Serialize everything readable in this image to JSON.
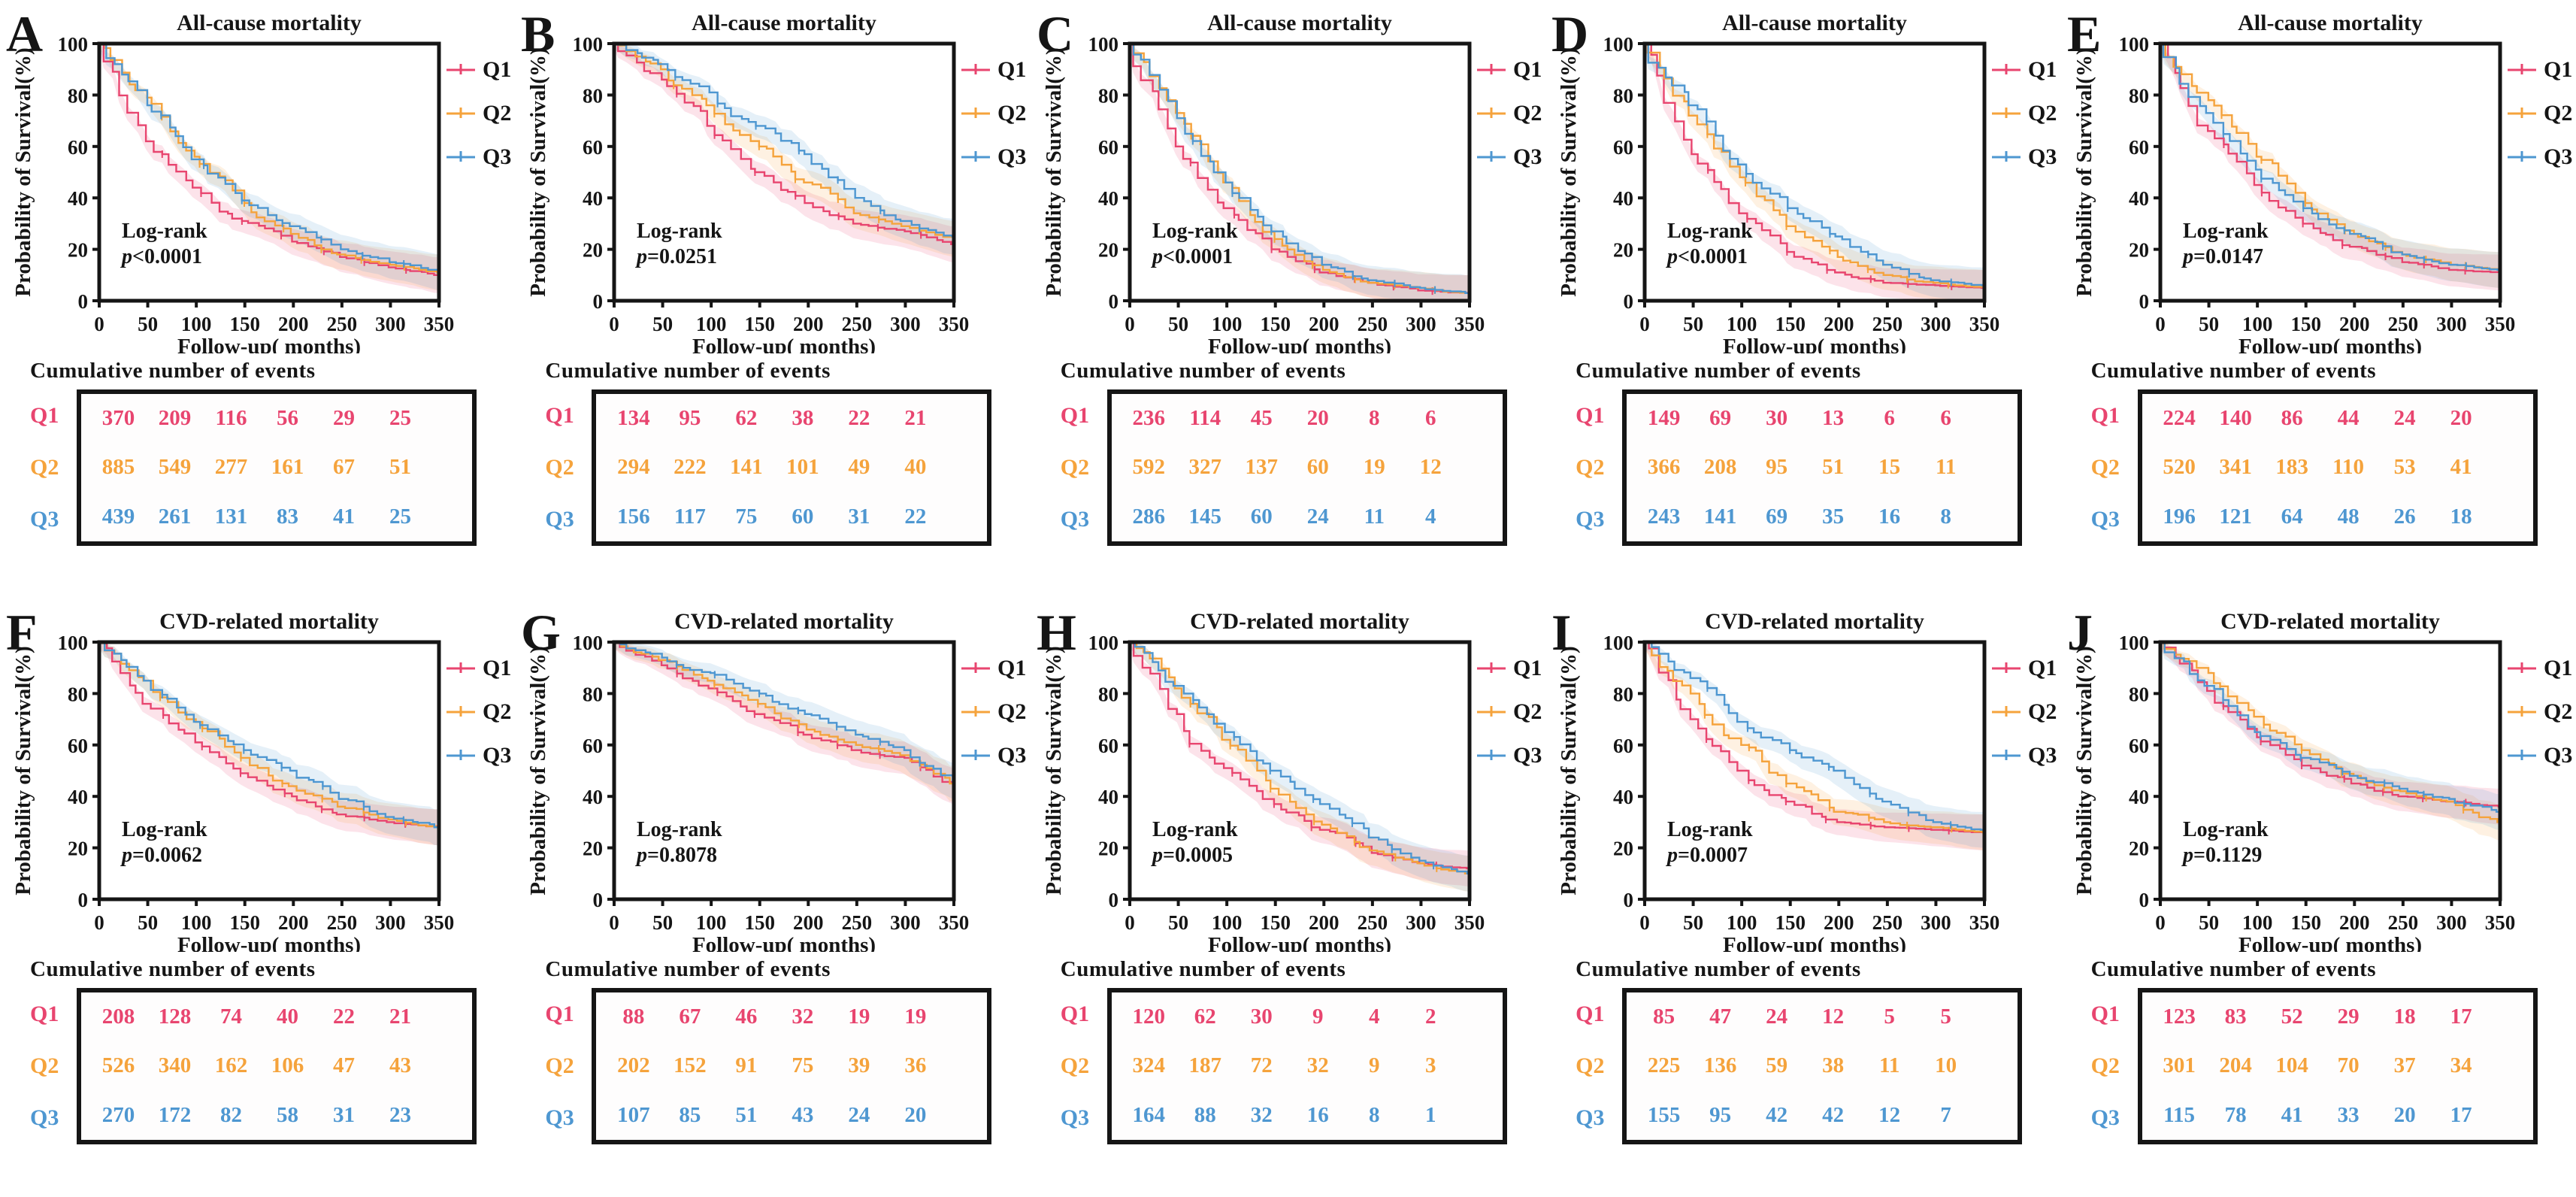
{
  "figure": {
    "axes": {
      "xlabel": "Follow-up( months)",
      "ylabel": "Probability of Survival(%)",
      "x_ticks": [
        0,
        50,
        100,
        150,
        200,
        250,
        300,
        350
      ],
      "y_ticks": [
        0,
        20,
        40,
        60,
        80,
        100
      ],
      "xlim": [
        0,
        350
      ],
      "ylim": [
        0,
        100
      ],
      "grid": false
    },
    "log_rank_label": "Log-rank",
    "events_heading": "Cumulative number of events",
    "legend": [
      {
        "label": "Q1",
        "color": "#E8456F"
      },
      {
        "label": "Q2",
        "color": "#F5A33C"
      },
      {
        "label": "Q3",
        "color": "#4E97D1"
      }
    ],
    "legend_position": "right",
    "frame_color": "#151515"
  },
  "chart_data": [
    {
      "panel": "A",
      "type": "line",
      "title": "All-cause mortality",
      "log_rank_p": "p<0.0001",
      "x": [
        0,
        50,
        100,
        150,
        200,
        250,
        300,
        350
      ],
      "series": [
        {
          "name": "Q1",
          "values": [
            100,
            62,
            44,
            31,
            23,
            17,
            13,
            10
          ]
        },
        {
          "name": "Q2",
          "values": [
            100,
            79,
            56,
            38,
            26,
            18,
            14,
            11
          ]
        },
        {
          "name": "Q3",
          "values": [
            100,
            76,
            55,
            39,
            29,
            20,
            15,
            11
          ]
        }
      ],
      "cumulative_events": [
        {
          "name": "Q1",
          "values": [
            370,
            209,
            116,
            56,
            29,
            25
          ]
        },
        {
          "name": "Q2",
          "values": [
            885,
            549,
            277,
            161,
            67,
            51
          ]
        },
        {
          "name": "Q3",
          "values": [
            439,
            261,
            131,
            83,
            41,
            25
          ]
        }
      ]
    },
    {
      "panel": "B",
      "type": "line",
      "title": "All-cause mortality",
      "log_rank_p": "p=0.0251",
      "x": [
        0,
        50,
        100,
        150,
        200,
        250,
        300,
        350
      ],
      "series": [
        {
          "name": "Q1",
          "values": [
            100,
            86,
            68,
            50,
            38,
            30,
            27,
            22
          ]
        },
        {
          "name": "Q2",
          "values": [
            100,
            90,
            76,
            60,
            46,
            34,
            29,
            24
          ]
        },
        {
          "name": "Q3",
          "values": [
            100,
            92,
            81,
            68,
            57,
            40,
            31,
            25
          ]
        }
      ],
      "cumulative_events": [
        {
          "name": "Q1",
          "values": [
            134,
            95,
            62,
            38,
            22,
            21
          ]
        },
        {
          "name": "Q2",
          "values": [
            294,
            222,
            141,
            101,
            49,
            40
          ]
        },
        {
          "name": "Q3",
          "values": [
            156,
            117,
            75,
            60,
            31,
            22
          ]
        }
      ]
    },
    {
      "panel": "C",
      "type": "line",
      "title": "All-cause mortality",
      "log_rank_p": "p<0.0001",
      "x": [
        0,
        50,
        100,
        150,
        200,
        250,
        300,
        350
      ],
      "series": [
        {
          "name": "Q1",
          "values": [
            100,
            60,
            36,
            20,
            11,
            7,
            4,
            3
          ]
        },
        {
          "name": "Q2",
          "values": [
            100,
            73,
            46,
            24,
            12,
            7,
            5,
            3
          ]
        },
        {
          "name": "Q3",
          "values": [
            100,
            71,
            46,
            27,
            14,
            8,
            5,
            3
          ]
        }
      ],
      "cumulative_events": [
        {
          "name": "Q1",
          "values": [
            236,
            114,
            45,
            20,
            8,
            6
          ]
        },
        {
          "name": "Q2",
          "values": [
            592,
            327,
            137,
            60,
            19,
            12
          ]
        },
        {
          "name": "Q3",
          "values": [
            286,
            145,
            60,
            24,
            11,
            4
          ]
        }
      ]
    },
    {
      "panel": "D",
      "type": "line",
      "title": "All-cause mortality",
      "log_rank_p": "p<0.0001",
      "x": [
        0,
        50,
        100,
        150,
        200,
        250,
        300,
        350
      ],
      "series": [
        {
          "name": "Q1",
          "values": [
            100,
            57,
            34,
            19,
            11,
            7,
            6,
            5
          ]
        },
        {
          "name": "Q2",
          "values": [
            100,
            72,
            48,
            29,
            17,
            10,
            7,
            5
          ]
        },
        {
          "name": "Q3",
          "values": [
            100,
            76,
            53,
            36,
            25,
            14,
            8,
            6
          ]
        }
      ],
      "cumulative_events": [
        {
          "name": "Q1",
          "values": [
            149,
            69,
            30,
            13,
            6,
            6
          ]
        },
        {
          "name": "Q2",
          "values": [
            366,
            208,
            95,
            51,
            15,
            11
          ]
        },
        {
          "name": "Q3",
          "values": [
            243,
            141,
            69,
            35,
            16,
            8
          ]
        }
      ]
    },
    {
      "panel": "E",
      "type": "line",
      "title": "All-cause mortality",
      "log_rank_p": "p=0.0147",
      "x": [
        0,
        50,
        100,
        150,
        200,
        250,
        300,
        350
      ],
      "series": [
        {
          "name": "Q1",
          "values": [
            100,
            66,
            45,
            30,
            21,
            15,
            12,
            11
          ]
        },
        {
          "name": "Q2",
          "values": [
            100,
            78,
            56,
            38,
            26,
            18,
            14,
            12
          ]
        },
        {
          "name": "Q3",
          "values": [
            100,
            73,
            51,
            36,
            26,
            18,
            14,
            12
          ]
        }
      ],
      "cumulative_events": [
        {
          "name": "Q1",
          "values": [
            224,
            140,
            86,
            44,
            24,
            20
          ]
        },
        {
          "name": "Q2",
          "values": [
            520,
            341,
            183,
            110,
            53,
            41
          ]
        },
        {
          "name": "Q3",
          "values": [
            196,
            121,
            64,
            48,
            26,
            18
          ]
        }
      ]
    },
    {
      "panel": "F",
      "type": "line",
      "title": "CVD-related mortality",
      "log_rank_p": "p=0.0062",
      "x": [
        0,
        50,
        100,
        150,
        200,
        250,
        300,
        350
      ],
      "series": [
        {
          "name": "Q1",
          "values": [
            100,
            76,
            61,
            49,
            40,
            33,
            30,
            28
          ]
        },
        {
          "name": "Q2",
          "values": [
            100,
            85,
            69,
            55,
            44,
            36,
            31,
            28
          ]
        },
        {
          "name": "Q3",
          "values": [
            100,
            85,
            69,
            58,
            50,
            39,
            32,
            28
          ]
        }
      ],
      "cumulative_events": [
        {
          "name": "Q1",
          "values": [
            208,
            128,
            74,
            40,
            22,
            21
          ]
        },
        {
          "name": "Q2",
          "values": [
            526,
            340,
            162,
            106,
            47,
            43
          ]
        },
        {
          "name": "Q3",
          "values": [
            270,
            172,
            82,
            58,
            31,
            23
          ]
        }
      ]
    },
    {
      "panel": "G",
      "type": "line",
      "title": "CVD-related mortality",
      "log_rank_p": "p=0.8078",
      "x": [
        0,
        50,
        100,
        150,
        200,
        250,
        300,
        350
      ],
      "series": [
        {
          "name": "Q1",
          "values": [
            100,
            91,
            82,
            72,
            64,
            58,
            55,
            44
          ]
        },
        {
          "name": "Q2",
          "values": [
            100,
            93,
            85,
            76,
            66,
            60,
            56,
            45
          ]
        },
        {
          "name": "Q3",
          "values": [
            100,
            94,
            88,
            80,
            72,
            64,
            58,
            46
          ]
        }
      ],
      "cumulative_events": [
        {
          "name": "Q1",
          "values": [
            88,
            67,
            46,
            32,
            19,
            19
          ]
        },
        {
          "name": "Q2",
          "values": [
            202,
            152,
            91,
            75,
            39,
            36
          ]
        },
        {
          "name": "Q3",
          "values": [
            107,
            85,
            51,
            43,
            24,
            20
          ]
        }
      ]
    },
    {
      "panel": "H",
      "type": "line",
      "title": "CVD-related mortality",
      "log_rank_p": "p=0.0005",
      "x": [
        0,
        50,
        100,
        150,
        200,
        250,
        300,
        350
      ],
      "series": [
        {
          "name": "Q1",
          "values": [
            100,
            72,
            51,
            37,
            27,
            18,
            14,
            12
          ]
        },
        {
          "name": "Q2",
          "values": [
            100,
            82,
            62,
            43,
            29,
            19,
            14,
            10
          ]
        },
        {
          "name": "Q3",
          "values": [
            100,
            83,
            65,
            50,
            37,
            24,
            15,
            10
          ]
        }
      ],
      "cumulative_events": [
        {
          "name": "Q1",
          "values": [
            120,
            62,
            30,
            9,
            4,
            2
          ]
        },
        {
          "name": "Q2",
          "values": [
            324,
            187,
            72,
            32,
            9,
            3
          ]
        },
        {
          "name": "Q3",
          "values": [
            164,
            88,
            32,
            16,
            8,
            1
          ]
        }
      ]
    },
    {
      "panel": "I",
      "type": "line",
      "title": "CVD-related mortality",
      "log_rank_p": "p=0.0007",
      "x": [
        0,
        50,
        100,
        150,
        200,
        250,
        300,
        350
      ],
      "series": [
        {
          "name": "Q1",
          "values": [
            100,
            70,
            50,
            38,
            30,
            28,
            27,
            26
          ]
        },
        {
          "name": "Q2",
          "values": [
            100,
            80,
            60,
            45,
            34,
            30,
            28,
            26
          ]
        },
        {
          "name": "Q3",
          "values": [
            100,
            86,
            69,
            58,
            50,
            38,
            30,
            27
          ]
        }
      ],
      "cumulative_events": [
        {
          "name": "Q1",
          "values": [
            85,
            47,
            24,
            12,
            5,
            5
          ]
        },
        {
          "name": "Q2",
          "values": [
            225,
            136,
            59,
            38,
            11,
            10
          ]
        },
        {
          "name": "Q3",
          "values": [
            155,
            95,
            42,
            42,
            12,
            7
          ]
        }
      ]
    },
    {
      "panel": "J",
      "type": "line",
      "title": "CVD-related mortality",
      "log_rank_p": "p=0.1129",
      "x": [
        0,
        50,
        100,
        150,
        200,
        250,
        300,
        350
      ],
      "series": [
        {
          "name": "Q1",
          "values": [
            100,
            81,
            63,
            52,
            45,
            40,
            38,
            36
          ]
        },
        {
          "name": "Q2",
          "values": [
            100,
            88,
            71,
            58,
            48,
            42,
            38,
            30
          ]
        },
        {
          "name": "Q3",
          "values": [
            100,
            83,
            65,
            55,
            48,
            43,
            39,
            34
          ]
        }
      ],
      "cumulative_events": [
        {
          "name": "Q1",
          "values": [
            123,
            83,
            52,
            29,
            18,
            17
          ]
        },
        {
          "name": "Q2",
          "values": [
            301,
            204,
            104,
            70,
            37,
            34
          ]
        },
        {
          "name": "Q3",
          "values": [
            115,
            78,
            41,
            33,
            20,
            17
          ]
        }
      ]
    }
  ]
}
